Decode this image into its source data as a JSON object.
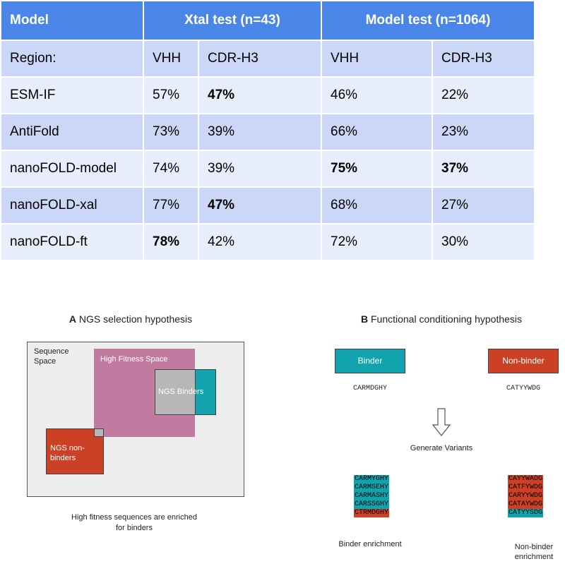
{
  "table": {
    "header": {
      "model": "Model",
      "xtal": "Xtal test (n=43)",
      "modeltest": "Model test (n=1064)"
    },
    "region_row": [
      "Region:",
      "VHH",
      "CDR-H3",
      "VHH",
      "CDR-H3"
    ],
    "rows": [
      {
        "name": "ESM-IF",
        "xtal_vhh": "57%",
        "xtal_cdr": "47%",
        "model_vhh": "46%",
        "model_cdr": "22%"
      },
      {
        "name": "AntiFold",
        "xtal_vhh": "73%",
        "xtal_cdr": "39%",
        "model_vhh": "66%",
        "model_cdr": "23%"
      },
      {
        "name": "nanoFOLD-model",
        "xtal_vhh": "74%",
        "xtal_cdr": "39%",
        "model_vhh": "75%",
        "model_cdr": "37%"
      },
      {
        "name": "nanoFOLD-xal",
        "xtal_vhh": "77%",
        "xtal_cdr": "47%",
        "model_vhh": "68%",
        "model_cdr": "27%"
      },
      {
        "name": "nanoFOLD-ft",
        "xtal_vhh": "78%",
        "xtal_cdr": "42%",
        "model_vhh": "72%",
        "model_cdr": "30%"
      }
    ]
  },
  "panel_a": {
    "letter": "A",
    "title": "NGS selection hypothesis",
    "sequence_space": "Sequence Space",
    "high_fitness": "High Fitness Space",
    "ngs_binders": "NGS Binders",
    "ngs_nonbinders": "NGS non-binders",
    "caption": "High fitness sequences are enriched for binders"
  },
  "panel_b": {
    "letter": "B",
    "title": "Functional conditioning hypothesis",
    "binder": "Binder",
    "nonbinder": "Non-binder",
    "binder_seq": "CARMDGHY",
    "nonbinder_seq": "CATYYWDG",
    "generate": "Generate Variants",
    "binder_variants": [
      "CARMYGHY",
      "CARMSEHY",
      "CARMASHY",
      "CARSSGHY",
      "CTRMDGHY"
    ],
    "nonbinder_variants": [
      "CAYYWADG",
      "CATFYWDG",
      "CARYYWDG",
      "CATAYWDG",
      "CATYYSDG"
    ],
    "binder_enrichment": "Binder enrichment",
    "nonbinder_enrichment": "Non-binder enrichment"
  },
  "colors": {
    "header_blue": "#4a86e8",
    "row_dark": "#ccd7f7",
    "row_light": "#e8edfb",
    "teal": "#12a4ae",
    "red": "#cc4125",
    "pink": "#c27ba0",
    "gray": "#b7b7b7"
  }
}
